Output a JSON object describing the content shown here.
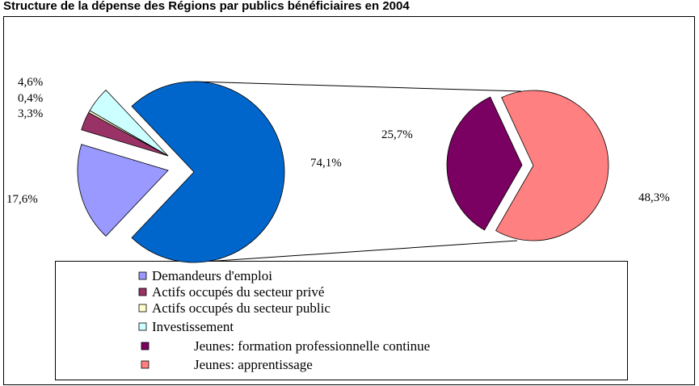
{
  "chart_data": {
    "type": "pie-of-pie",
    "title": "Structure de la dépense des Régions par publics bénéficiaires en 2004",
    "slices": [
      {
        "name": "Demandeurs d'emploi",
        "color": "#9999ff",
        "value": 17.6,
        "value_label": "17,6%",
        "pie": "main"
      },
      {
        "name": "Actifs occupés du secteur privé",
        "color": "#993366",
        "value": 3.3,
        "value_label": "3,3%",
        "pie": "main"
      },
      {
        "name": "Actifs occupés du secteur public",
        "color": "#ffffcc",
        "value": 0.4,
        "value_label": "0,4%",
        "pie": "main"
      },
      {
        "name": "Investissement",
        "color": "#ccffff",
        "value": 4.6,
        "value_label": "4,6%",
        "pie": "main"
      },
      {
        "name": "Jeunes: formation professionnelle continue",
        "color": "#7a0062",
        "value": 25.7,
        "value_label": "25,7%",
        "pie": "secondary"
      },
      {
        "name": "Jeunes: apprentissage",
        "color": "#ff8080",
        "value": 48.3,
        "value_label": "48,3%",
        "pie": "secondary"
      }
    ],
    "combined": {
      "value": 74.1,
      "value_label": "74,1%",
      "color": "#0066cc"
    }
  }
}
